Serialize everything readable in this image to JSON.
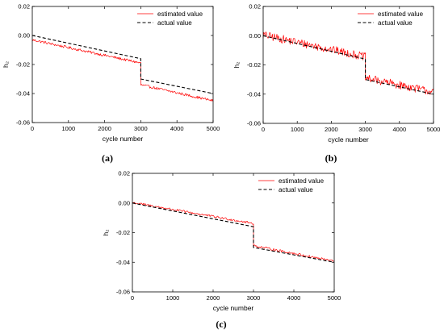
{
  "chart_data": [
    {
      "type": "line",
      "panel": "(a)",
      "xlabel": "cycle number",
      "ylabel": "h₂",
      "xlim": [
        0,
        5000
      ],
      "ylim": [
        -0.06,
        0.02
      ],
      "xticks": [
        0,
        1000,
        2000,
        3000,
        4000,
        5000
      ],
      "yticks": [
        0.02,
        0.0,
        -0.02,
        -0.04,
        -0.06
      ],
      "xtick_labels": [
        "0",
        "1000",
        "2000",
        "3000",
        "4000",
        "5000"
      ],
      "ytick_labels": [
        "0.02",
        "0.00",
        "-0.02",
        "-0.04",
        "-0.06"
      ],
      "grid": false,
      "legend_position": "top-right",
      "series": [
        {
          "name": "estimated value",
          "color": "#ff0000",
          "style": "solid-noisy",
          "noise_amplitude": 0.0009,
          "x": [
            0,
            3000,
            3000,
            5000
          ],
          "y": [
            -0.003,
            -0.019,
            -0.034,
            -0.045
          ]
        },
        {
          "name": "actual value",
          "color": "#000000",
          "style": "dashed",
          "x": [
            0,
            3000,
            3000,
            5000
          ],
          "y": [
            0.0,
            -0.016,
            -0.03,
            -0.04
          ]
        }
      ]
    },
    {
      "type": "line",
      "panel": "(b)",
      "xlabel": "cycle number",
      "ylabel": "h₂",
      "xlim": [
        0,
        5000
      ],
      "ylim": [
        -0.06,
        0.02
      ],
      "xticks": [
        0,
        1000,
        2000,
        3000,
        4000,
        5000
      ],
      "yticks": [
        0.02,
        0.0,
        -0.02,
        -0.04,
        -0.06
      ],
      "xtick_labels": [
        "0",
        "1000",
        "2000",
        "3000",
        "4000",
        "5000"
      ],
      "ytick_labels": [
        "0.02",
        "0.00",
        "-0.02",
        "-0.04",
        "-0.06"
      ],
      "grid": false,
      "legend_position": "top-right",
      "series": [
        {
          "name": "estimated value",
          "color": "#ff0000",
          "style": "solid-noisy",
          "noise_amplitude": 0.0028,
          "x": [
            0,
            3000,
            3000,
            5000
          ],
          "y": [
            0.0005,
            -0.0145,
            -0.029,
            -0.0385
          ]
        },
        {
          "name": "actual value",
          "color": "#000000",
          "style": "dashed",
          "x": [
            0,
            3000,
            3000,
            5000
          ],
          "y": [
            0.0,
            -0.016,
            -0.03,
            -0.04
          ]
        }
      ]
    },
    {
      "type": "line",
      "panel": "(c)",
      "xlabel": "cycle number",
      "ylabel": "h₂",
      "xlim": [
        0,
        5000
      ],
      "ylim": [
        -0.06,
        0.02
      ],
      "xticks": [
        0,
        1000,
        2000,
        3000,
        4000,
        5000
      ],
      "yticks": [
        0.02,
        0.0,
        -0.02,
        -0.04,
        -0.06
      ],
      "xtick_labels": [
        "0",
        "1000",
        "2000",
        "3000",
        "4000",
        "5000"
      ],
      "ytick_labels": [
        "0.02",
        "0.00",
        "-0.02",
        "-0.04",
        "-0.06"
      ],
      "grid": false,
      "legend_position": "top-right",
      "series": [
        {
          "name": "estimated value",
          "color": "#ff0000",
          "style": "solid-noisy",
          "noise_amplitude": 0.0008,
          "x": [
            0,
            3000,
            3000,
            5000
          ],
          "y": [
            0.0003,
            -0.0138,
            -0.0288,
            -0.0393
          ]
        },
        {
          "name": "actual value",
          "color": "#000000",
          "style": "dashed",
          "x": [
            0,
            3000,
            3000,
            5000
          ],
          "y": [
            0.0,
            -0.016,
            -0.03,
            -0.04
          ]
        }
      ]
    }
  ]
}
